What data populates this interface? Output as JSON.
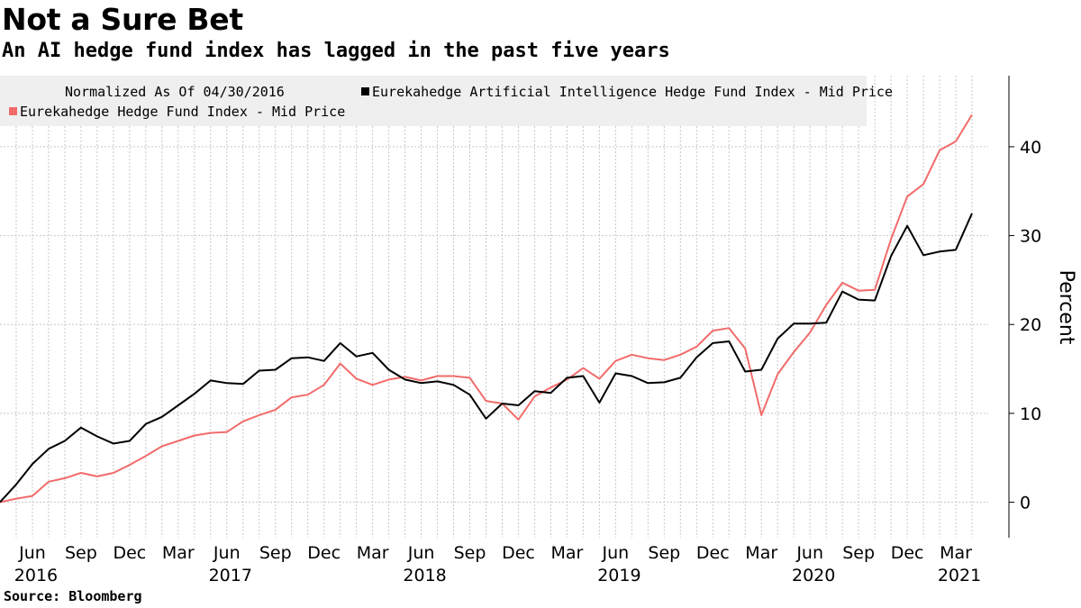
{
  "chart_data": {
    "type": "line",
    "title": "Not a Sure Bet",
    "subtitle": "An AI hedge fund index has lagged in the past five years",
    "ylabel": "Percent",
    "ylim": [
      -4,
      48
    ],
    "yticks": [
      0,
      10,
      20,
      30,
      40
    ],
    "xlim": [
      0,
      61
    ],
    "x_tick_labels": [
      {
        "x": 2,
        "month": "Jun",
        "year": "2016"
      },
      {
        "x": 5,
        "month": "Sep",
        "year": ""
      },
      {
        "x": 8,
        "month": "Dec",
        "year": ""
      },
      {
        "x": 11,
        "month": "Mar",
        "year": ""
      },
      {
        "x": 14,
        "month": "Jun",
        "year": "2017"
      },
      {
        "x": 17,
        "month": "Sep",
        "year": ""
      },
      {
        "x": 20,
        "month": "Dec",
        "year": ""
      },
      {
        "x": 23,
        "month": "Mar",
        "year": ""
      },
      {
        "x": 26,
        "month": "Jun",
        "year": "2018"
      },
      {
        "x": 29,
        "month": "Sep",
        "year": ""
      },
      {
        "x": 32,
        "month": "Dec",
        "year": ""
      },
      {
        "x": 35,
        "month": "Mar",
        "year": ""
      },
      {
        "x": 38,
        "month": "Jun",
        "year": "2019"
      },
      {
        "x": 41,
        "month": "Sep",
        "year": ""
      },
      {
        "x": 44,
        "month": "Dec",
        "year": ""
      },
      {
        "x": 47,
        "month": "Mar",
        "year": ""
      },
      {
        "x": 50,
        "month": "Jun",
        "year": "2020"
      },
      {
        "x": 53,
        "month": "Sep",
        "year": ""
      },
      {
        "x": 56,
        "month": "Dec",
        "year": ""
      },
      {
        "x": 59,
        "month": "Mar",
        "year": "2021"
      }
    ],
    "legend_note": "Normalized As Of 04/30/2016",
    "series": [
      {
        "name": "Eurekahedge Artificial Intelligence Hedge Fund Index - Mid Price",
        "color": "#000000",
        "values": [
          0,
          2.0,
          4.3,
          6.0,
          6.9,
          8.4,
          7.4,
          6.6,
          6.9,
          8.8,
          9.6,
          10.9,
          12.2,
          13.7,
          13.4,
          13.3,
          14.8,
          14.9,
          16.2,
          16.3,
          15.9,
          17.9,
          16.4,
          16.8,
          14.9,
          13.8,
          13.4,
          13.6,
          13.2,
          12.1,
          9.4,
          11.1,
          10.9,
          12.5,
          12.3,
          14.0,
          14.2,
          11.2,
          14.5,
          14.2,
          13.4,
          13.5,
          14.0,
          16.3,
          17.9,
          18.1,
          14.7,
          14.9,
          18.4,
          20.1,
          20.1,
          20.2,
          23.7,
          22.8,
          22.7,
          27.7,
          31.1,
          27.8,
          28.2,
          28.4,
          32.5
        ]
      },
      {
        "name": "Eurekahedge Hedge Fund Index - Mid Price",
        "color": "#f26b6b",
        "values": [
          0,
          0.4,
          0.7,
          2.3,
          2.7,
          3.3,
          2.9,
          3.3,
          4.2,
          5.2,
          6.3,
          6.9,
          7.5,
          7.8,
          7.9,
          9.1,
          9.8,
          10.4,
          11.8,
          12.1,
          13.2,
          15.6,
          13.9,
          13.2,
          13.8,
          14.1,
          13.7,
          14.2,
          14.2,
          14.0,
          11.4,
          11.1,
          9.3,
          11.9,
          12.9,
          13.8,
          15.1,
          13.9,
          15.9,
          16.6,
          16.2,
          16.0,
          16.6,
          17.5,
          19.3,
          19.6,
          17.3,
          9.8,
          14.4,
          16.9,
          19.1,
          22.2,
          24.7,
          23.8,
          23.9,
          29.6,
          34.4,
          35.8,
          39.6,
          40.6,
          43.6
        ]
      }
    ]
  },
  "source": "Source: Bloomberg"
}
